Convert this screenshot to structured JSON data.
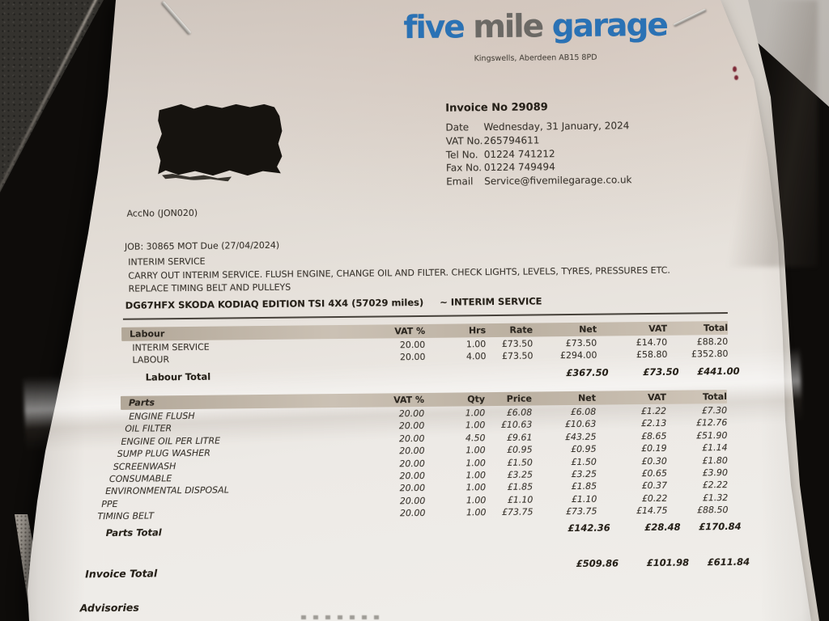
{
  "colors": {
    "logo_blue": "#2a72b5",
    "logo_gray": "#6b6965",
    "paper": "#ece9e5",
    "redaction_black": "#16130f",
    "band_tan": "#c0b5a6"
  },
  "paper": {
    "logo": {
      "word1": "five",
      "word2": "mile",
      "word3": "garage",
      "address": "Kingswells, Aberdeen AB15 8PD"
    },
    "invoice_header": {
      "invoice_no": "Invoice No 29089",
      "fields": [
        {
          "label": "Date",
          "value": "Wednesday, 31 January, 2024"
        },
        {
          "label": "VAT No.",
          "value": "265794611"
        },
        {
          "label": "Tel No.",
          "value": "01224 741212"
        },
        {
          "label": "Fax No.",
          "value": "01224 749494"
        },
        {
          "label": "Email",
          "value": "Service@fivemilegarage.co.uk"
        }
      ]
    },
    "account_no": "AccNo (JON020)",
    "job_line": "JOB: 30865   MOT Due (27/04/2024)",
    "job_description": [
      "INTERIM SERVICE",
      "CARRY OUT INTERIM SERVICE.  FLUSH ENGINE, CHANGE OIL AND FILTER. CHECK LIGHTS, LEVELS, TYRES, PRESSURES ETC.",
      "REPLACE TIMING BELT AND PULLEYS"
    ],
    "vehicle_line": "DG67HFX SKODA KODIAQ EDITION TSI 4X4 (57029 miles)     ~ INTERIM SERVICE",
    "labour_table": {
      "title": "Labour",
      "headers": [
        "VAT %",
        "Hrs",
        "Rate",
        "Net",
        "VAT",
        "Total"
      ],
      "rows": [
        {
          "name": "INTERIM SERVICE",
          "vat_pct": "20.00",
          "hrs": "1.00",
          "rate": "£73.50",
          "net": "£73.50",
          "vat": "£14.70",
          "total": "£88.20"
        },
        {
          "name": "LABOUR",
          "vat_pct": "20.00",
          "hrs": "4.00",
          "rate": "£73.50",
          "net": "£294.00",
          "vat": "£58.80",
          "total": "£352.80"
        }
      ],
      "total_label": "Labour Total",
      "total": {
        "net": "£367.50",
        "vat": "£73.50",
        "total": "£441.00"
      }
    },
    "parts_table": {
      "title": "Parts",
      "headers": [
        "VAT %",
        "Qty",
        "Price",
        "Net",
        "VAT",
        "Total"
      ],
      "rows": [
        {
          "name": "ENGINE FLUSH",
          "vat_pct": "20.00",
          "qty": "1.00",
          "price": "£6.08",
          "net": "£6.08",
          "vat": "£1.22",
          "total": "£7.30"
        },
        {
          "name": "OIL FILTER",
          "vat_pct": "20.00",
          "qty": "1.00",
          "price": "£10.63",
          "net": "£10.63",
          "vat": "£2.13",
          "total": "£12.76"
        },
        {
          "name": "ENGINE OIL PER LITRE",
          "vat_pct": "20.00",
          "qty": "4.50",
          "price": "£9.61",
          "net": "£43.25",
          "vat": "£8.65",
          "total": "£51.90"
        },
        {
          "name": "SUMP PLUG WASHER",
          "vat_pct": "20.00",
          "qty": "1.00",
          "price": "£0.95",
          "net": "£0.95",
          "vat": "£0.19",
          "total": "£1.14"
        },
        {
          "name": "SCREENWASH",
          "vat_pct": "20.00",
          "qty": "1.00",
          "price": "£1.50",
          "net": "£1.50",
          "vat": "£0.30",
          "total": "£1.80"
        },
        {
          "name": "CONSUMABLE",
          "vat_pct": "20.00",
          "qty": "1.00",
          "price": "£3.25",
          "net": "£3.25",
          "vat": "£0.65",
          "total": "£3.90"
        },
        {
          "name": "ENVIRONMENTAL DISPOSAL",
          "vat_pct": "20.00",
          "qty": "1.00",
          "price": "£1.85",
          "net": "£1.85",
          "vat": "£0.37",
          "total": "£2.22"
        },
        {
          "name": "PPE",
          "vat_pct": "20.00",
          "qty": "1.00",
          "price": "£1.10",
          "net": "£1.10",
          "vat": "£0.22",
          "total": "£1.32"
        },
        {
          "name": "TIMING BELT",
          "vat_pct": "20.00",
          "qty": "1.00",
          "price": "£73.75",
          "net": "£73.75",
          "vat": "£14.75",
          "total": "£88.50"
        }
      ],
      "total_label": "Parts Total",
      "total": {
        "net": "£142.36",
        "vat": "£28.48",
        "total": "£170.84"
      }
    },
    "invoice_total": {
      "label": "Invoice Total",
      "net": "£509.86",
      "vat": "£101.98",
      "total": "£611.84"
    },
    "advisories_label": "Advisories"
  }
}
